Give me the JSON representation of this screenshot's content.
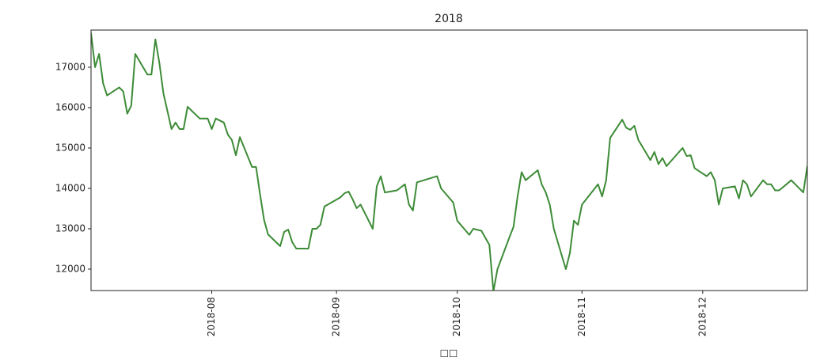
{
  "chart_data": {
    "type": "line",
    "title": "2018",
    "x_label": "□□",
    "x": [
      "2018-07-02",
      "2018-07-03",
      "2018-07-04",
      "2018-07-05",
      "2018-07-06",
      "2018-07-09",
      "2018-07-10",
      "2018-07-11",
      "2018-07-12",
      "2018-07-13",
      "2018-07-16",
      "2018-07-17",
      "2018-07-18",
      "2018-07-19",
      "2018-07-20",
      "2018-07-22",
      "2018-07-23",
      "2018-07-24",
      "2018-07-25",
      "2018-07-26",
      "2018-07-29",
      "2018-07-30",
      "2018-07-31",
      "2018-08-01",
      "2018-08-02",
      "2018-08-04",
      "2018-08-05",
      "2018-08-06",
      "2018-08-07",
      "2018-08-08",
      "2018-08-11",
      "2018-08-12",
      "2018-08-13",
      "2018-08-14",
      "2018-08-15",
      "2018-08-18",
      "2018-08-19",
      "2018-08-20",
      "2018-08-21",
      "2018-08-22",
      "2018-08-25",
      "2018-08-26",
      "2018-08-27",
      "2018-08-28",
      "2018-08-29",
      "2018-09-02",
      "2018-09-03",
      "2018-09-04",
      "2018-09-05",
      "2018-09-06",
      "2018-09-07",
      "2018-09-10",
      "2018-09-11",
      "2018-09-12",
      "2018-09-13",
      "2018-09-16",
      "2018-09-18",
      "2018-09-19",
      "2018-09-20",
      "2018-09-21",
      "2018-09-26",
      "2018-09-27",
      "2018-09-30",
      "2018-10-01",
      "2018-10-04",
      "2018-10-05",
      "2018-10-07",
      "2018-10-09",
      "2018-10-10",
      "2018-10-11",
      "2018-10-14",
      "2018-10-15",
      "2018-10-16",
      "2018-10-17",
      "2018-10-18",
      "2018-10-21",
      "2018-10-22",
      "2018-10-23",
      "2018-10-24",
      "2018-10-25",
      "2018-10-28",
      "2018-10-29",
      "2018-10-30",
      "2018-10-31",
      "2018-11-01",
      "2018-11-05",
      "2018-11-06",
      "2018-11-07",
      "2018-11-08",
      "2018-11-11",
      "2018-11-12",
      "2018-11-13",
      "2018-11-14",
      "2018-11-15",
      "2018-11-18",
      "2018-11-19",
      "2018-11-20",
      "2018-11-21",
      "2018-11-22",
      "2018-11-26",
      "2018-11-27",
      "2018-11-28",
      "2018-11-29",
      "2018-12-02",
      "2018-12-03",
      "2018-12-04",
      "2018-12-05",
      "2018-12-06",
      "2018-12-09",
      "2018-12-10",
      "2018-12-11",
      "2018-12-12",
      "2018-12-13",
      "2018-12-16",
      "2018-12-17",
      "2018-12-18",
      "2018-12-19",
      "2018-12-20",
      "2018-12-23",
      "2018-12-26",
      "2018-12-27"
    ],
    "values": [
      17850,
      17000,
      17330,
      16600,
      16300,
      16500,
      16400,
      15850,
      16050,
      17330,
      16820,
      16820,
      17690,
      17100,
      16350,
      15470,
      15630,
      15470,
      15470,
      16020,
      15730,
      15730,
      15730,
      15470,
      15730,
      15630,
      15330,
      15200,
      14820,
      15270,
      14530,
      14530,
      13860,
      13220,
      12860,
      12570,
      12920,
      12980,
      12670,
      12510,
      12510,
      13000,
      13000,
      13100,
      13550,
      13780,
      13880,
      13920,
      13730,
      13510,
      13600,
      13000,
      14050,
      14300,
      13900,
      13950,
      14100,
      13600,
      13450,
      14150,
      14300,
      14000,
      13650,
      13200,
      12850,
      13000,
      12950,
      12600,
      11450,
      12000,
      12800,
      13050,
      13800,
      14400,
      14200,
      14450,
      14100,
      13900,
      13600,
      13000,
      12000,
      12400,
      13200,
      13100,
      13600,
      14100,
      13800,
      14200,
      15250,
      15700,
      15500,
      15450,
      15550,
      15200,
      14700,
      14900,
      14600,
      14750,
      14550,
      15000,
      14800,
      14820,
      14500,
      14300,
      14400,
      14200,
      13600,
      14000,
      14050,
      13750,
      14200,
      14100,
      13800,
      14200,
      14100,
      14100,
      13950,
      13950,
      14200,
      13900,
      14550
    ],
    "color": "#3d8b37",
    "xlim": [
      "2018-07-02",
      "2018-12-27"
    ],
    "xticks": [
      {
        "value": "2018-08-01",
        "label": "2018-08"
      },
      {
        "value": "2018-09-01",
        "label": "2018-09"
      },
      {
        "value": "2018-10-01",
        "label": "2018-10"
      },
      {
        "value": "2018-11-01",
        "label": "2018-11"
      },
      {
        "value": "2018-12-01",
        "label": "2018-12"
      }
    ],
    "ylim": [
      11470,
      17920
    ],
    "yticks": [
      12000,
      13000,
      14000,
      15000,
      16000,
      17000
    ]
  }
}
